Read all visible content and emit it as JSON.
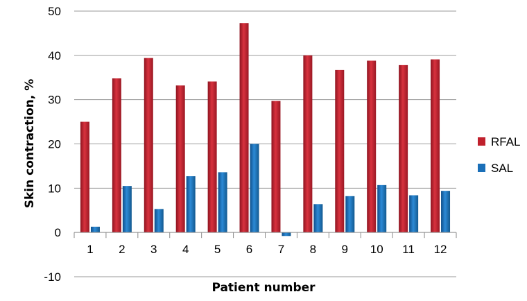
{
  "chart_data": {
    "type": "bar",
    "title": "",
    "xlabel": "Patient number",
    "ylabel": "Skin contraction, %",
    "categories": [
      "1",
      "2",
      "3",
      "4",
      "5",
      "6",
      "7",
      "8",
      "9",
      "10",
      "11",
      "12"
    ],
    "series": [
      {
        "name": "RFAL",
        "color": "#c0202c",
        "values": [
          25.0,
          34.8,
          39.4,
          33.2,
          34.1,
          47.3,
          29.7,
          40.0,
          36.7,
          38.8,
          37.8,
          39.1
        ]
      },
      {
        "name": "SAL",
        "color": "#1a6fb8",
        "values": [
          1.3,
          10.5,
          5.3,
          12.7,
          13.6,
          20.0,
          -0.8,
          6.4,
          8.2,
          10.7,
          8.4,
          9.4
        ]
      }
    ],
    "ylim": [
      -10,
      50
    ],
    "yticks": [
      -10,
      0,
      10,
      20,
      30,
      40,
      50
    ],
    "grid": true,
    "legend": "right"
  }
}
